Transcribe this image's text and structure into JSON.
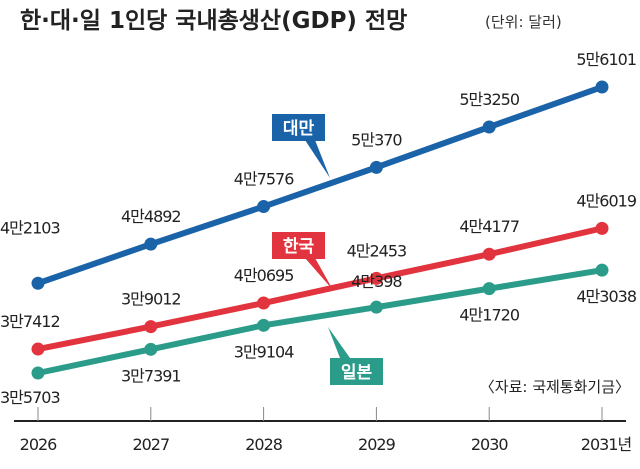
{
  "chart_data": {
    "type": "line",
    "title": "한·대·일 1인당 국내총생산(GDP) 전망",
    "unit": "(단위: 달러)",
    "x": [
      "2026",
      "2027",
      "2028",
      "2029",
      "2030",
      "2031년"
    ],
    "series": [
      {
        "name": "대만",
        "color": "#1b63a9",
        "values": [
          42103,
          44892,
          47576,
          50370,
          53250,
          56101
        ],
        "labels": [
          "4만2103",
          "4만4892",
          "4만7576",
          "5만370",
          "5만3250",
          "5만6101"
        ]
      },
      {
        "name": "한국",
        "color": "#e2343e",
        "values": [
          37412,
          39012,
          40695,
          42453,
          44177,
          46019
        ],
        "labels": [
          "3만7412",
          "3만9012",
          "4만0695",
          "4만2453",
          "4만4177",
          "4만6019"
        ]
      },
      {
        "name": "일본",
        "color": "#2b9c89",
        "values": [
          35703,
          37391,
          39104,
          40398,
          41720,
          43038
        ],
        "labels": [
          "3만5703",
          "3만7391",
          "3만9104",
          "4만398",
          "4만1720",
          "4만3038"
        ]
      }
    ],
    "source": "〈자료: 국제통화기금〉",
    "xlabel": "",
    "ylabel": "",
    "grid": false
  }
}
